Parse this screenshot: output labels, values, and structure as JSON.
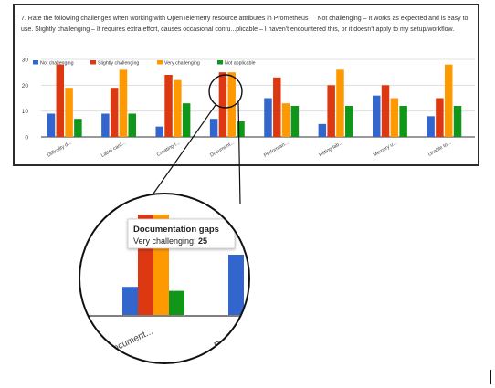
{
  "question": {
    "prefix": "7. Rate the following challenges when working with OpenTelemetry resource attributes in Prometheus",
    "scale": "Not challenging – It works as expected and is easy to use.  Slightly challenging – It requires extra effort, causes occasional confu...plicable – I haven't encountered this, or it doesn't apply to my setup/workflow."
  },
  "chart_data": {
    "type": "bar",
    "categories": [
      "Difficulty d...",
      "Label card...",
      "Creating r...",
      "Document...",
      "Performan...",
      "Hitting lab...",
      "Memory u...",
      "Unable to..."
    ],
    "series": [
      {
        "name": "Not challenging",
        "color": "#3366cc",
        "values": [
          9,
          9,
          4,
          7,
          15,
          5,
          16,
          8
        ]
      },
      {
        "name": "Slightly challenging",
        "color": "#dc3912",
        "values": [
          28,
          19,
          24,
          25,
          23,
          20,
          20,
          15
        ]
      },
      {
        "name": "Very challenging",
        "color": "#ff9900",
        "values": [
          19,
          26,
          22,
          25,
          13,
          26,
          15,
          28
        ]
      },
      {
        "name": "Not applicable",
        "color": "#109618",
        "values": [
          7,
          9,
          13,
          6,
          12,
          12,
          12,
          12
        ]
      }
    ],
    "ylim": [
      0,
      30
    ],
    "yticks": [
      0,
      10,
      20,
      30
    ],
    "grid": true,
    "legend": "top-left"
  },
  "tooltip": {
    "title": "Documentation gaps",
    "label": "Very challenging: ",
    "value": "25"
  },
  "zoom": {
    "labels": [
      "Document...",
      "Perfo"
    ]
  }
}
